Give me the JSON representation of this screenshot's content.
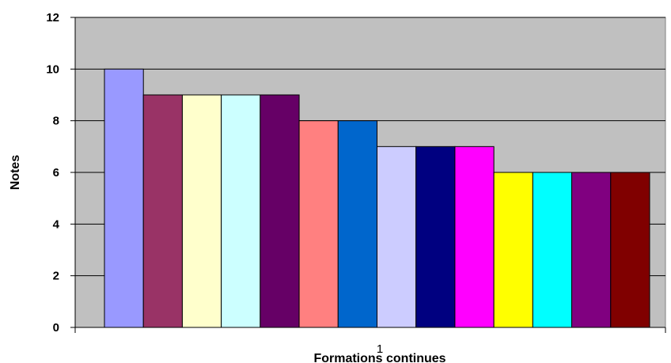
{
  "chart_data": {
    "type": "bar",
    "categories": [
      "1"
    ],
    "series": [
      {
        "values": [
          10
        ],
        "color": "#9999FF"
      },
      {
        "values": [
          9
        ],
        "color": "#993366"
      },
      {
        "values": [
          9
        ],
        "color": "#FFFFCC"
      },
      {
        "values": [
          9
        ],
        "color": "#CCFFFF"
      },
      {
        "values": [
          9
        ],
        "color": "#660066"
      },
      {
        "values": [
          8
        ],
        "color": "#FF8080"
      },
      {
        "values": [
          8
        ],
        "color": "#0066CC"
      },
      {
        "values": [
          7
        ],
        "color": "#CCCCFF"
      },
      {
        "values": [
          7
        ],
        "color": "#000080"
      },
      {
        "values": [
          7
        ],
        "color": "#FF00FF"
      },
      {
        "values": [
          6
        ],
        "color": "#FFFF00"
      },
      {
        "values": [
          6
        ],
        "color": "#00FFFF"
      },
      {
        "values": [
          6
        ],
        "color": "#800080"
      },
      {
        "values": [
          6
        ],
        "color": "#800000"
      }
    ],
    "xlabel": "Formations continues",
    "ylabel": "Notes",
    "ylim": [
      0,
      12
    ],
    "yticks": [
      "0",
      "2",
      "4",
      "6",
      "8",
      "10",
      "12"
    ],
    "grid": true,
    "plot_background": "#C0C0C0",
    "legend": "none"
  }
}
